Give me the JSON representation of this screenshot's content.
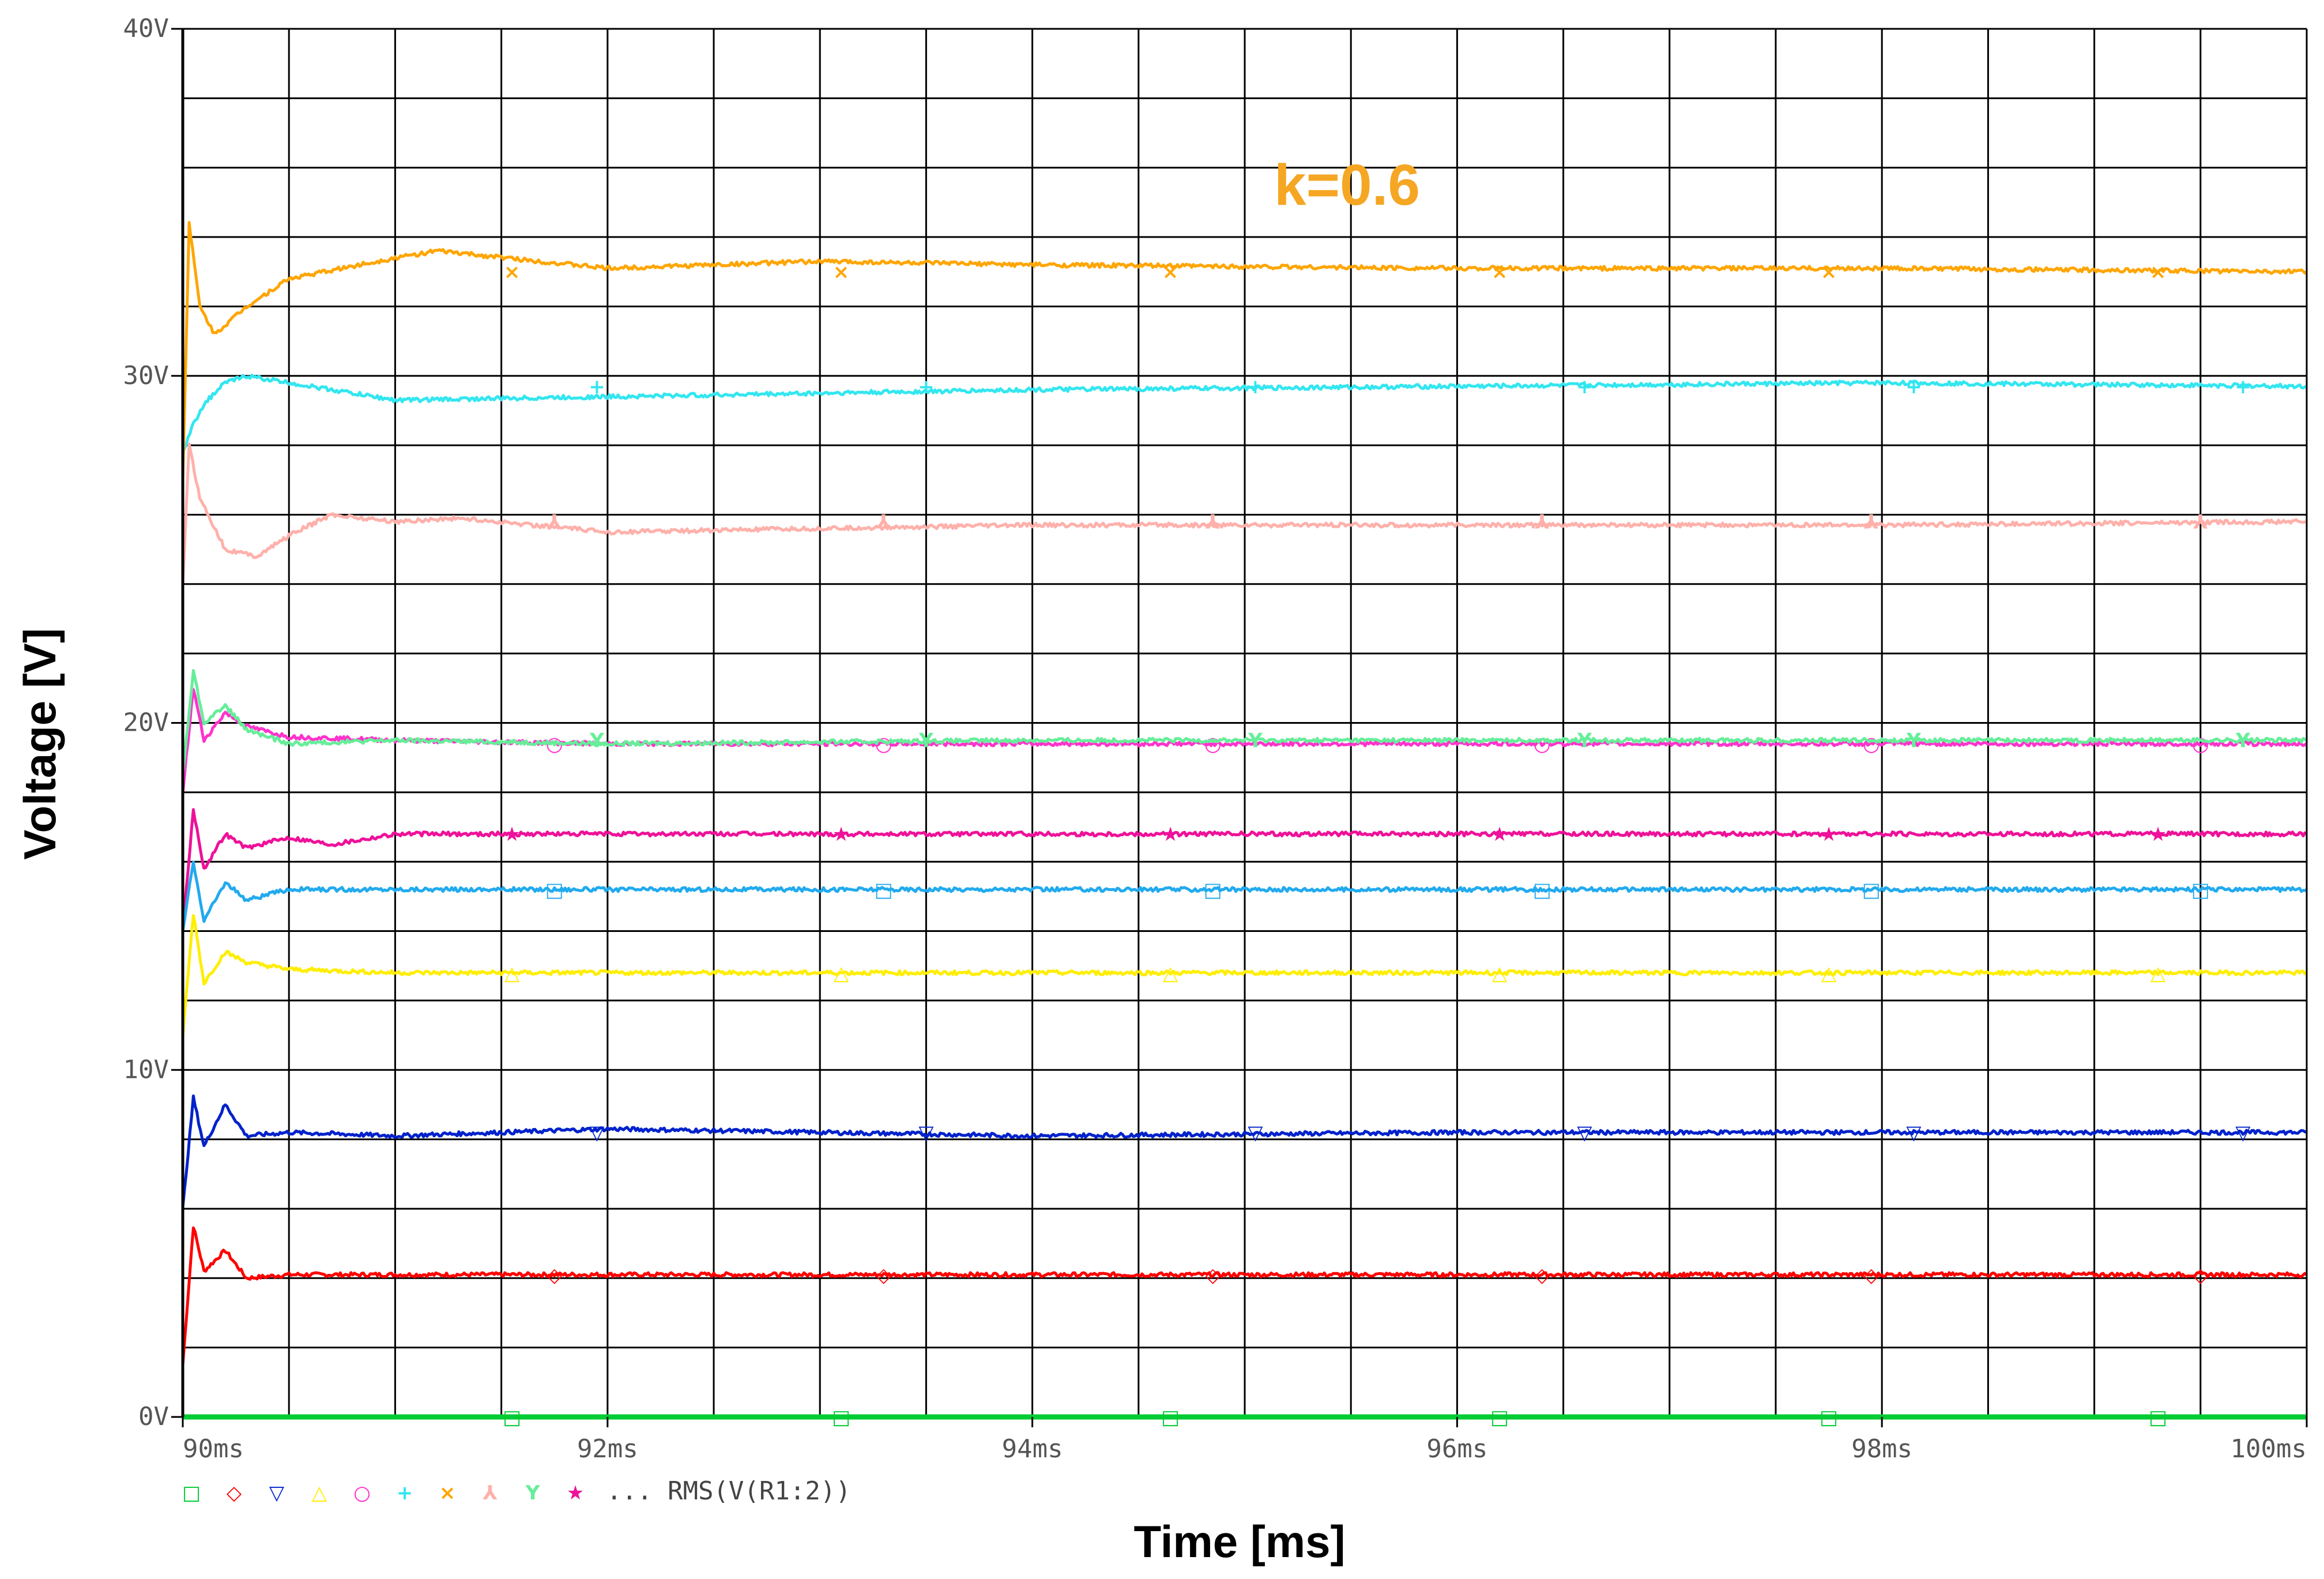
{
  "chart_data": {
    "type": "line",
    "annotation": "k=0.6",
    "annotation_color": "#F5A623",
    "xlabel": "Time [ms]",
    "ylabel": "Voltage [V]",
    "xlim": [
      90,
      100
    ],
    "ylim": [
      0,
      40
    ],
    "x_ticks": [
      90,
      92,
      94,
      96,
      98,
      100
    ],
    "x_tick_labels": [
      "90ms",
      "92ms",
      "94ms",
      "96ms",
      "98ms",
      "100ms"
    ],
    "y_ticks": [
      0,
      10,
      20,
      30,
      40
    ],
    "y_tick_labels": [
      "0V",
      "10V",
      "20V",
      "30V",
      "40V"
    ],
    "grid": true,
    "legend_placement": "bottom-left",
    "legend_trailer": "... RMS(V(R1:2))",
    "series": [
      {
        "marker": "□",
        "color": "#00CC33",
        "x": [
          90,
          100
        ],
        "y": [
          0,
          0
        ]
      },
      {
        "marker": "◇",
        "color": "#FF0000",
        "x": [
          90,
          90.05,
          90.1,
          90.2,
          90.3,
          90.5,
          91,
          92,
          94,
          96,
          98,
          100
        ],
        "y": [
          1.5,
          5.5,
          4.2,
          4.8,
          4.0,
          4.1,
          4.1,
          4.1,
          4.1,
          4.1,
          4.1,
          4.1
        ]
      },
      {
        "marker": "▽",
        "color": "#0022CC",
        "x": [
          90,
          90.05,
          90.1,
          90.2,
          90.3,
          90.5,
          91,
          92,
          94,
          96,
          98,
          100
        ],
        "y": [
          6.0,
          9.2,
          7.8,
          9.0,
          8.1,
          8.2,
          8.1,
          8.3,
          8.1,
          8.2,
          8.2,
          8.2
        ]
      },
      {
        "marker": "△",
        "color": "#FFEE00",
        "x": [
          90,
          90.05,
          90.1,
          90.2,
          90.3,
          90.5,
          91,
          92,
          94,
          96,
          98,
          100
        ],
        "y": [
          11.0,
          14.5,
          12.5,
          13.4,
          13.1,
          12.9,
          12.8,
          12.8,
          12.8,
          12.8,
          12.8,
          12.8
        ]
      },
      {
        "marker": "○",
        "color": "#FF33CC",
        "x": [
          90,
          90.05,
          90.1,
          90.2,
          90.3,
          90.5,
          91,
          92,
          94,
          96,
          98,
          100
        ],
        "y": [
          18.0,
          21.0,
          19.5,
          20.3,
          19.9,
          19.6,
          19.5,
          19.4,
          19.4,
          19.4,
          19.4,
          19.4
        ]
      },
      {
        "marker": "+",
        "color": "#33E6F0",
        "x": [
          90,
          90.05,
          90.1,
          90.2,
          90.3,
          90.5,
          91,
          92,
          94,
          96,
          98,
          100
        ],
        "y": [
          27.8,
          28.6,
          29.2,
          29.8,
          30.0,
          29.8,
          29.3,
          29.4,
          29.6,
          29.7,
          29.8,
          29.7
        ]
      },
      {
        "marker": "×",
        "color": "#FFA500",
        "x": [
          90,
          90.03,
          90.08,
          90.15,
          90.3,
          90.5,
          91,
          91.2,
          92,
          93,
          94,
          96,
          98,
          100
        ],
        "y": [
          27.0,
          34.4,
          32.0,
          31.2,
          32.0,
          32.8,
          33.4,
          33.6,
          33.1,
          33.3,
          33.2,
          33.1,
          33.1,
          33.0
        ]
      },
      {
        "marker": "⅄",
        "color": "#FFB0AA",
        "x": [
          90,
          90.03,
          90.08,
          90.2,
          90.35,
          90.5,
          90.7,
          91,
          91.3,
          92,
          94,
          96,
          98,
          100
        ],
        "y": [
          24.0,
          28.0,
          26.5,
          25.0,
          24.8,
          25.4,
          26.0,
          25.8,
          25.9,
          25.5,
          25.7,
          25.7,
          25.7,
          25.8
        ]
      },
      {
        "marker": "Y",
        "color": "#66EE99",
        "x": [
          90,
          90.05,
          90.1,
          90.2,
          90.3,
          90.5,
          91,
          92,
          94,
          96,
          98,
          100
        ],
        "y": [
          18.5,
          21.5,
          20.0,
          20.5,
          19.8,
          19.4,
          19.5,
          19.4,
          19.5,
          19.5,
          19.5,
          19.5
        ]
      },
      {
        "marker": "★",
        "color": "#EE1199",
        "x": [
          90,
          90.05,
          90.1,
          90.2,
          90.3,
          90.5,
          90.7,
          91,
          92,
          94,
          96,
          98,
          100
        ],
        "y": [
          14.0,
          17.5,
          15.8,
          16.8,
          16.4,
          16.7,
          16.5,
          16.8,
          16.8,
          16.8,
          16.8,
          16.8,
          16.8
        ]
      },
      {
        "marker": "□",
        "color": "#22AAEE",
        "x": [
          90,
          90.05,
          90.1,
          90.2,
          90.3,
          90.5,
          91,
          92,
          94,
          96,
          98,
          100
        ],
        "y": [
          14.0,
          16.0,
          14.3,
          15.4,
          14.9,
          15.2,
          15.2,
          15.2,
          15.2,
          15.2,
          15.2,
          15.2
        ]
      }
    ]
  }
}
